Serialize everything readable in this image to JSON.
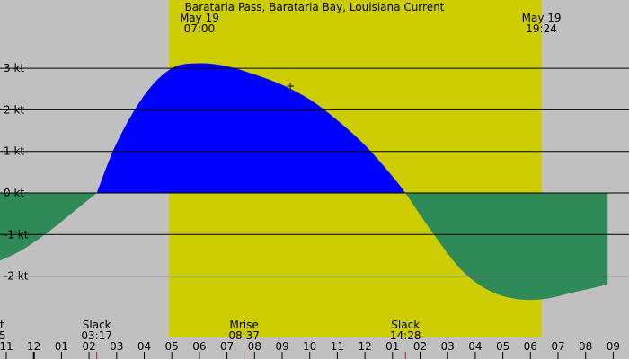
{
  "title": "Barataria Pass, Barataria Bay, Louisiana Current",
  "colors": {
    "background": "#c0c0c0",
    "daylight": "#cccc00",
    "flood": "#0000ff",
    "ebb": "#2e8b57",
    "gridline": "#000000",
    "tick_marker": "#ff0000"
  },
  "date_markers": [
    {
      "date": "May 19",
      "time": "07:00",
      "hour": 7.0
    },
    {
      "date": "May 19",
      "time": "19:24",
      "hour": 19.4
    }
  ],
  "events": [
    {
      "label": "Slack",
      "time": "03:17",
      "hour": 3.28
    },
    {
      "label": "Mrise",
      "time": "08:37",
      "hour": 8.62
    },
    {
      "label": "Slack",
      "time": "14:28",
      "hour": 14.47
    }
  ],
  "clipped_event": {
    "label": "t",
    "time": "5"
  },
  "x_tick_labels": [
    "11",
    "12",
    "01",
    "02",
    "03",
    "04",
    "05",
    "06",
    "07",
    "08",
    "09",
    "10",
    "11",
    "12",
    "01",
    "02",
    "03",
    "04",
    "05",
    "06",
    "07",
    "08",
    "09"
  ],
  "chart_data": {
    "type": "area",
    "title": "Barataria Pass, Barataria Bay, Louisiana Current",
    "unit": "kt",
    "y_ticks": [
      {
        "value": 3,
        "label": "3 kt"
      },
      {
        "value": 2,
        "label": "2 kt"
      },
      {
        "value": 1,
        "label": "1 kt"
      },
      {
        "value": 0,
        "label": "0 kt"
      },
      {
        "value": -1,
        "label": "-1 kt"
      },
      {
        "value": -2,
        "label": "-2 kt"
      }
    ],
    "x_range_hours": [
      -1.2,
      21.8
    ],
    "daylight_hours": [
      5.9,
      19.4
    ],
    "grid": true,
    "series": [
      {
        "x": [
          -1.2,
          -0.5,
          0.5,
          1.5,
          2.5,
          3.28,
          4.0,
          5.0,
          6.0,
          7.0,
          8.0,
          9.0,
          10.0,
          11.0,
          12.0,
          13.0,
          14.0,
          14.47,
          15.5,
          16.5,
          17.5,
          18.5,
          19.5,
          20.5,
          21.5,
          21.8
        ],
        "y": [
          -1.85,
          -1.7,
          -1.4,
          -0.95,
          -0.42,
          0.0,
          1.2,
          2.35,
          3.0,
          3.12,
          3.05,
          2.85,
          2.6,
          2.25,
          1.75,
          1.15,
          0.4,
          0.0,
          -1.0,
          -1.85,
          -2.35,
          -2.55,
          -2.55,
          -2.4,
          -2.25,
          -2.2
        ]
      }
    ],
    "annotations": [
      {
        "label": "+",
        "x": 10.3,
        "y": 2.57
      }
    ]
  }
}
